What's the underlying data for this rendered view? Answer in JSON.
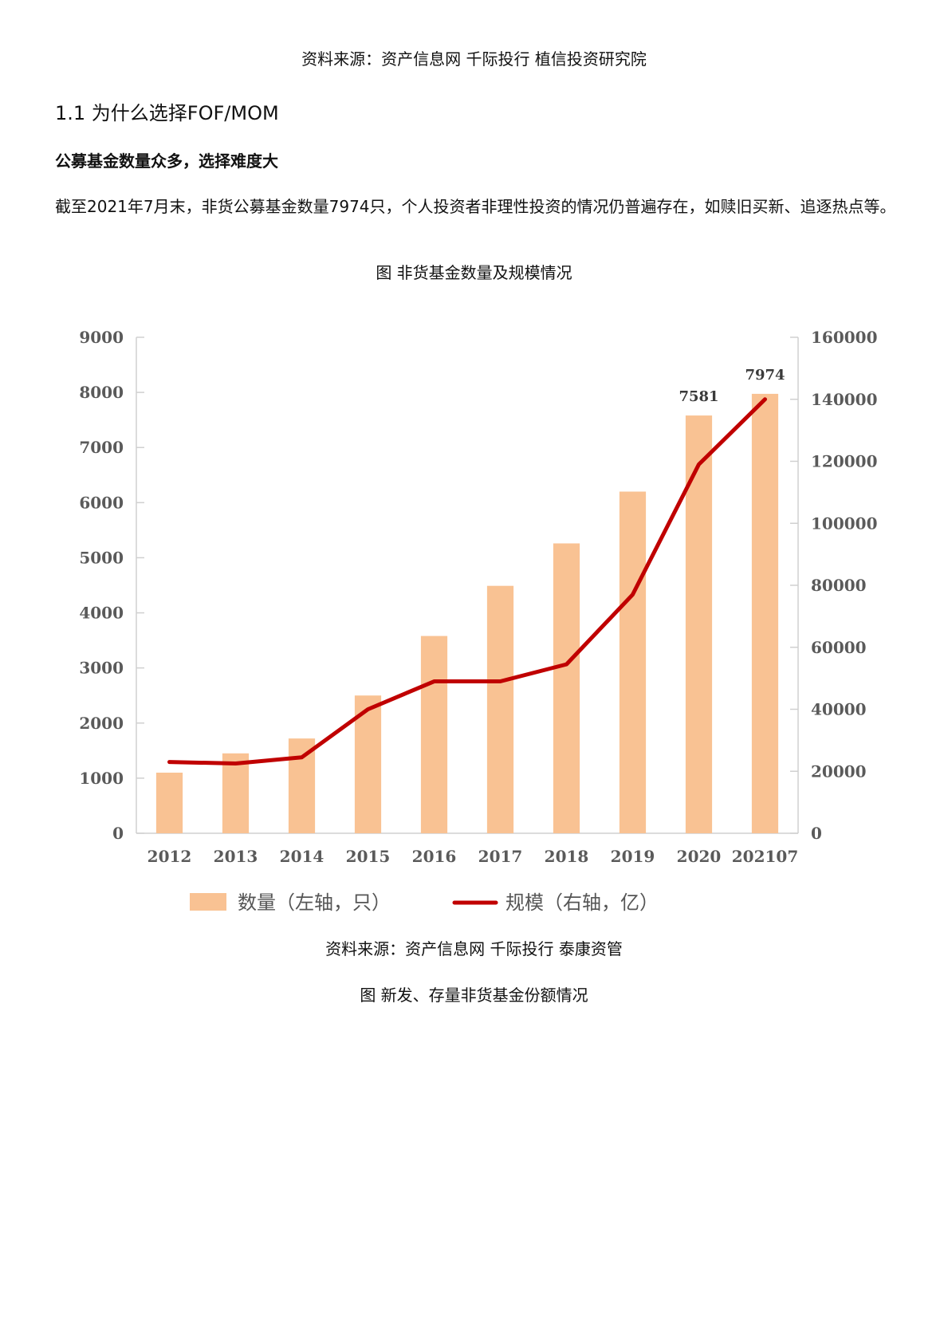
{
  "document": {
    "top_source": "资料来源：资产信息网 千际投行 植信投资研究院",
    "section_heading": "1.1 为什么选择FOF/MOM",
    "subheading": "公募基金数量众多，选择难度大",
    "paragraph": "截至2021年7月末，非货公募基金数量7974只，个人投资者非理性投资的情况仍普遍存在，如赎旧买新、追逐热点等。",
    "figure1_caption": "图 非货基金数量及规模情况",
    "figure1_source": "资料来源：资产信息网 千际投行 泰康资管",
    "figure2_caption": "图 新发、存量非货基金份额情况"
  },
  "chart_data": {
    "type": "bar",
    "title": "图 非货基金数量及规模情况",
    "categories": [
      "2012",
      "2013",
      "2014",
      "2015",
      "2016",
      "2017",
      "2018",
      "2019",
      "2020",
      "202107"
    ],
    "series": [
      {
        "name": "数量（左轴，只）",
        "type": "bar",
        "axis": "left",
        "color": "#f9c293",
        "values": [
          1100,
          1450,
          1720,
          2500,
          3580,
          4490,
          5260,
          6200,
          7581,
          7974
        ]
      },
      {
        "name": "规模（右轴，亿）",
        "type": "line",
        "axis": "right",
        "color": "#c00000",
        "values": [
          23000,
          22500,
          24500,
          40000,
          49000,
          49000,
          54500,
          77000,
          119000,
          140000
        ]
      }
    ],
    "data_labels": [
      {
        "category": "2020",
        "value": "7581"
      },
      {
        "category": "202107",
        "value": "7974"
      }
    ],
    "left_axis": {
      "min": 0,
      "max": 9000,
      "ticks": [
        "0",
        "1000",
        "2000",
        "3000",
        "4000",
        "5000",
        "6000",
        "7000",
        "8000",
        "9000"
      ]
    },
    "right_axis": {
      "min": 0,
      "max": 160000,
      "ticks": [
        "0",
        "20000",
        "40000",
        "60000",
        "80000",
        "100000",
        "120000",
        "140000",
        "160000"
      ]
    },
    "xlabel": "",
    "ylabel": "",
    "legend": {
      "position": "bottom",
      "entries": [
        "数量（左轴，只）",
        "规模（右轴，亿）"
      ]
    },
    "grid": false
  }
}
